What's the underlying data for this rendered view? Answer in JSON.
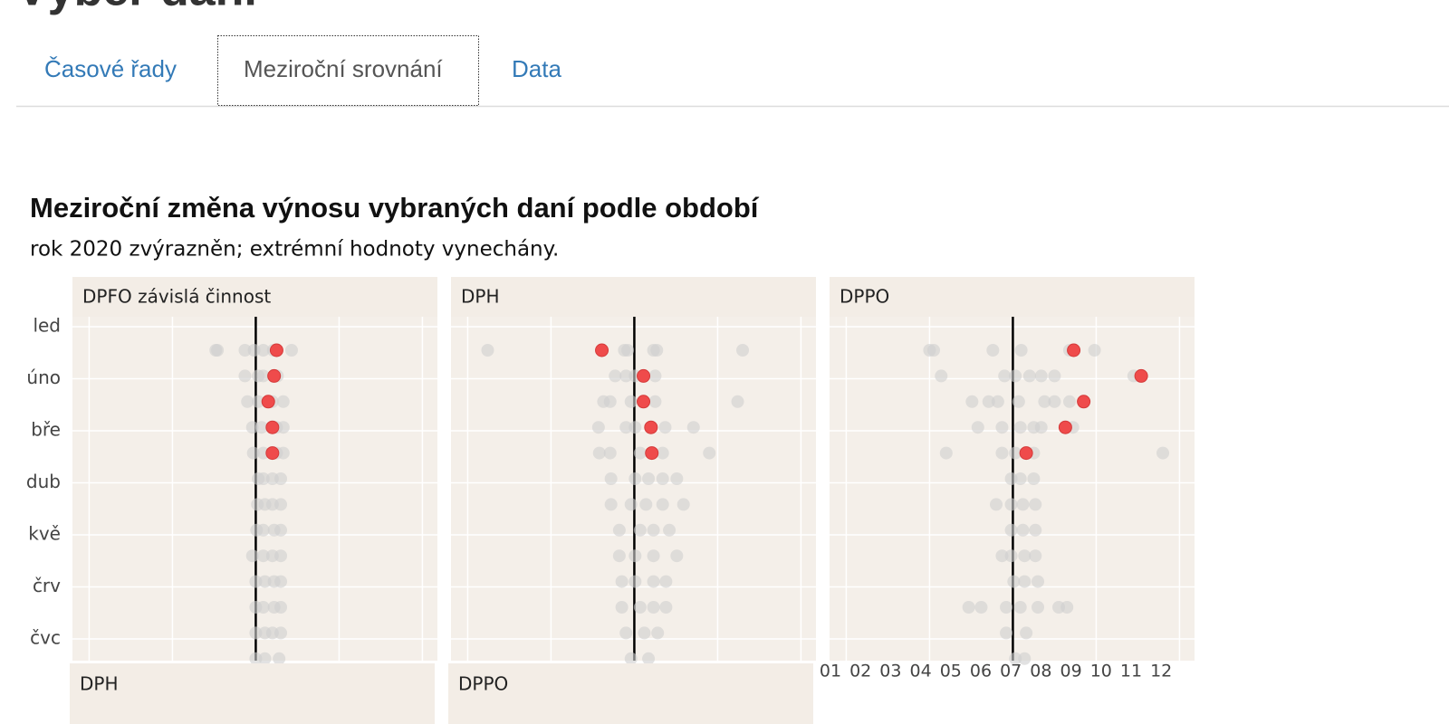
{
  "page_title": "Výběr daní",
  "tabs": [
    "Časové řady",
    "Meziroční srovnání",
    "Data"
  ],
  "chart_data": {
    "type": "scatter",
    "title": "Meziroční změna výnosu vybraných daní podle období",
    "subtitle": "rok 2020 zvýrazněn; extrémní hodnoty vynechány.",
    "ylabels": [
      "led",
      "úno",
      "bře",
      "dub",
      "kvě",
      "črv",
      "čvc"
    ],
    "xlim": [
      -2.2,
      2.18
    ],
    "xgrid": [
      -2,
      -1,
      0,
      1,
      2
    ],
    "point_color": "#cfcfcf",
    "highlight_color": "#ef4b4b",
    "panels": [
      {
        "title": "DPFO závislá činnost",
        "rows": [
          {
            "values": [
              -0.48,
              -0.46,
              -0.13,
              -0.02,
              0.09,
              0.21,
              0.43
            ],
            "highlight": 0.25
          },
          {
            "values": [
              -0.13,
              0.03,
              0.09,
              0.26
            ],
            "highlight": 0.22
          },
          {
            "values": [
              -0.1,
              0.03,
              0.2,
              0.33
            ],
            "highlight": 0.15
          },
          {
            "values": [
              -0.04,
              0.07,
              0.25,
              0.33
            ],
            "highlight": 0.2
          },
          {
            "values": [
              -0.03,
              0.09,
              0.25,
              0.33
            ],
            "highlight": 0.2
          },
          {
            "values": [
              0.03,
              0.09,
              0.2,
              0.3
            ]
          },
          {
            "values": [
              0.02,
              0.11,
              0.2,
              0.3
            ]
          },
          {
            "values": [
              0.01,
              0.09,
              0.22,
              0.3
            ]
          },
          {
            "values": [
              -0.04,
              0.09,
              0.2,
              0.3
            ]
          },
          {
            "values": [
              0,
              0.11,
              0.22,
              0.3
            ]
          },
          {
            "values": [
              0,
              0.09,
              0.22,
              0.3
            ]
          },
          {
            "values": [
              0,
              0.11,
              0.2,
              0.3
            ]
          },
          {
            "values": [
              0,
              0.11,
              0.28
            ]
          }
        ]
      },
      {
        "title": "DPH",
        "rows": [
          {
            "values": [
              -1.76,
              -0.12,
              -0.08,
              0.23,
              0.27,
              1.3
            ],
            "highlight": -0.39
          },
          {
            "values": [
              -0.23,
              -0.1,
              0.01,
              0.25
            ],
            "highlight": 0.11
          },
          {
            "values": [
              -0.37,
              -0.29,
              -0.04,
              0.25,
              1.24
            ],
            "highlight": 0.11
          },
          {
            "values": [
              -0.43,
              -0.1,
              0.01,
              0.37,
              0.71
            ],
            "highlight": 0.2
          },
          {
            "values": [
              -0.42,
              -0.29,
              0.07,
              0.34,
              0.9
            ],
            "highlight": 0.21
          },
          {
            "values": [
              -0.28,
              0.01,
              0.17,
              0.34,
              0.51
            ]
          },
          {
            "values": [
              -0.28,
              -0.04,
              0.14,
              0.34,
              0.59
            ]
          },
          {
            "values": [
              -0.18,
              0.07,
              0.23,
              0.42
            ]
          },
          {
            "values": [
              -0.18,
              0.01,
              0.23,
              0.51
            ]
          },
          {
            "values": [
              -0.15,
              0.01,
              0.23,
              0.38
            ]
          },
          {
            "values": [
              -0.15,
              0.07,
              0.23,
              0.38
            ]
          },
          {
            "values": [
              -0.1,
              0.12,
              0.28
            ]
          },
          {
            "values": [
              -0.04,
              0.17
            ]
          }
        ]
      },
      {
        "title": "DPPO",
        "rows": [
          {
            "values": [
              -1.0,
              -0.95,
              -0.24,
              0.1,
              0.68,
              0.98
            ],
            "highlight": 0.73
          },
          {
            "values": [
              -0.86,
              -0.1,
              0.03,
              0.2,
              0.34,
              0.5,
              1.45
            ],
            "highlight": 1.54
          },
          {
            "values": [
              -0.49,
              -0.29,
              -0.18,
              0.07,
              0.38,
              0.5,
              0.68
            ],
            "highlight": 0.85
          },
          {
            "values": [
              -0.42,
              -0.13,
              0.09,
              0.25,
              0.34,
              0.72
            ],
            "highlight": 0.63
          },
          {
            "values": [
              -0.8,
              -0.13,
              0.03,
              0.25,
              1.8
            ],
            "highlight": 0.16
          },
          {
            "values": [
              -0.02,
              0.09,
              0.25
            ]
          },
          {
            "values": [
              -0.2,
              -0.02,
              0.12,
              0.27
            ]
          },
          {
            "values": [
              -0.02,
              0.12,
              0.27
            ]
          },
          {
            "values": [
              -0.13,
              -0.02,
              0.14,
              0.27
            ]
          },
          {
            "values": [
              0.01,
              0.14,
              0.3
            ]
          },
          {
            "values": [
              -0.53,
              -0.38,
              -0.08,
              0.09,
              0.3,
              0.55,
              0.65
            ]
          },
          {
            "values": [
              -0.08,
              0.16
            ]
          },
          {
            "values": [
              0.03,
              0.14
            ]
          }
        ]
      }
    ],
    "lower_panels": [
      "DPH",
      "DPPO"
    ],
    "month_labels": [
      "01",
      "02",
      "03",
      "04",
      "05",
      "06",
      "07",
      "08",
      "09",
      "10",
      "11",
      "12"
    ]
  }
}
